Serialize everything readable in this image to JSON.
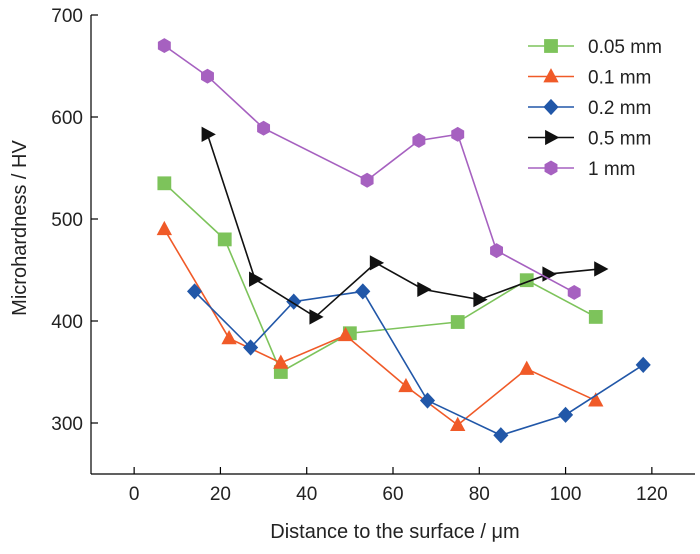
{
  "chart_data": {
    "type": "line",
    "title": "",
    "xlabel": "Distance to the surface / μm",
    "ylabel": "Microhardness / HV",
    "xlim": [
      -10,
      130
    ],
    "ylim": [
      250,
      700
    ],
    "x_ticks": [
      0,
      20,
      40,
      60,
      80,
      100,
      120
    ],
    "y_ticks": [
      300,
      400,
      500,
      600,
      700
    ],
    "grid": false,
    "legend_position": "top-right",
    "series": [
      {
        "name": "0.05 mm",
        "color": "#7dc35b",
        "marker": "square",
        "x": [
          7,
          21,
          34,
          50,
          75,
          91,
          107
        ],
        "y": [
          535,
          480,
          350,
          388,
          399,
          440,
          404
        ]
      },
      {
        "name": "0.1 mm",
        "color": "#f05a28",
        "marker": "triangle-up",
        "x": [
          7,
          22,
          34,
          49,
          63,
          75,
          91,
          107
        ],
        "y": [
          490,
          383,
          359,
          386,
          336,
          298,
          353,
          322
        ]
      },
      {
        "name": "0.2 mm",
        "color": "#2157a8",
        "marker": "diamond",
        "x": [
          14,
          27,
          37,
          53,
          68,
          85,
          100,
          118
        ],
        "y": [
          429,
          374,
          419,
          429,
          322,
          288,
          308,
          357
        ]
      },
      {
        "name": "0.5 mm",
        "color": "#111111",
        "marker": "triangle-right",
        "x": [
          17,
          28,
          42,
          56,
          67,
          80,
          96,
          108
        ],
        "y": [
          583,
          441,
          404,
          457,
          431,
          421,
          446,
          451
        ]
      },
      {
        "name": "1 mm",
        "color": "#a661c0",
        "marker": "hexagon",
        "x": [
          7,
          17,
          30,
          54,
          66,
          75,
          84,
          102
        ],
        "y": [
          670,
          640,
          589,
          538,
          577,
          583,
          469,
          428
        ]
      }
    ]
  }
}
